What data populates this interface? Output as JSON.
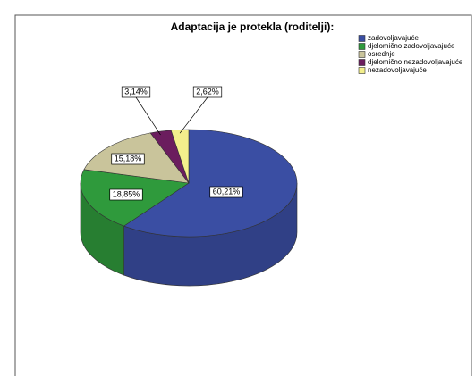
{
  "chart_data": {
    "type": "pie",
    "title": "Adaptacija je protekla (roditelji):",
    "categories": [
      "zadovoljavajuće",
      "djelomično zadovoljavajuće",
      "osrednje",
      "djelomično nezadovoljavajuće",
      "nezadovoljavajuće"
    ],
    "values": [
      60.21,
      18.85,
      15.18,
      3.14,
      2.62
    ],
    "value_labels": [
      "60,21%",
      "18,85%",
      "15,18%",
      "3,14%",
      "2,62%"
    ],
    "colors": [
      "#3a4ea3",
      "#2f9a3c",
      "#c9c49b",
      "#6b1d5e",
      "#f3ef8c"
    ],
    "legend": "top-right"
  }
}
